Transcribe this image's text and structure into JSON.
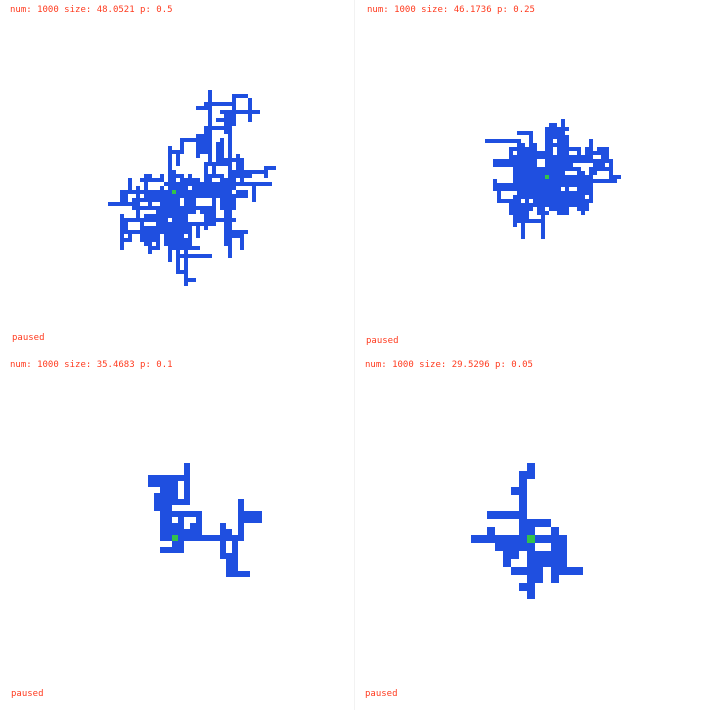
{
  "colors": {
    "cluster": "#1f4fe0",
    "seed": "#33c24a",
    "label": "#ff3b1f",
    "background": "#ffffff"
  },
  "panels": [
    {
      "stats": "num: 1000 size: 48.0521 p: 0.5",
      "state": "paused"
    },
    {
      "stats": "num: 1000 size: 46.1736 p: 0.25",
      "state": "paused"
    },
    {
      "stats": "num: 1000 size: 35.4683 p: 0.1",
      "state": "paused"
    },
    {
      "stats": "num: 1000 size: 29.5296 p: 0.05",
      "state": "paused"
    }
  ]
}
